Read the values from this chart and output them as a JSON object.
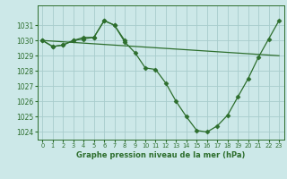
{
  "title": "Graphe pression niveau de la mer (hPa)",
  "background_color": "#cce8e8",
  "grid_color": "#a8cccc",
  "line_color": "#2d6e2d",
  "marker_color": "#2d6e2d",
  "ylim": [
    1023.5,
    1032.3
  ],
  "yticks": [
    1024,
    1025,
    1026,
    1027,
    1028,
    1029,
    1030,
    1031
  ],
  "xlim": [
    -0.5,
    23.5
  ],
  "xticks": [
    0,
    1,
    2,
    3,
    4,
    5,
    6,
    7,
    8,
    9,
    10,
    11,
    12,
    13,
    14,
    15,
    16,
    17,
    18,
    19,
    20,
    21,
    22,
    23
  ],
  "series1_x": [
    0,
    1,
    2,
    3,
    4,
    5,
    6,
    7,
    8,
    9,
    10,
    11,
    12,
    13,
    14,
    15,
    16,
    17,
    18,
    19,
    20,
    21,
    22,
    23
  ],
  "series1_y": [
    1030.0,
    1029.6,
    1029.7,
    1030.0,
    1030.1,
    1030.2,
    1031.3,
    1031.0,
    1029.9,
    1029.2,
    1028.2,
    1028.1,
    1027.2,
    1026.0,
    1025.0,
    1024.1,
    1024.0,
    1024.4,
    1025.1,
    1026.3,
    1027.5,
    1028.9,
    1030.1,
    1031.3
  ],
  "series2_x": [
    0,
    1,
    2,
    3,
    4,
    5,
    6,
    7,
    8
  ],
  "series2_y": [
    1030.0,
    1029.6,
    1029.7,
    1030.0,
    1030.2,
    1030.2,
    1031.3,
    1031.0,
    1030.0
  ],
  "series3_x": [
    0,
    23
  ],
  "series3_y": [
    1030.0,
    1029.0
  ]
}
